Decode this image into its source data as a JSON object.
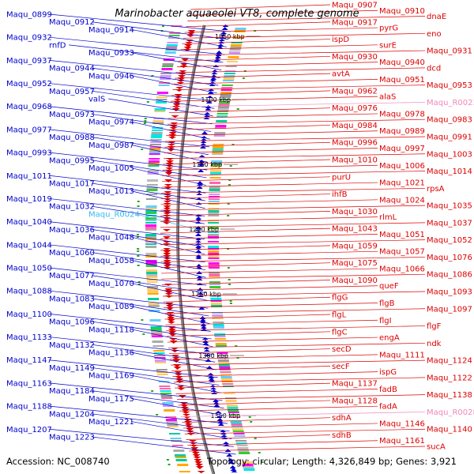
{
  "title": "Marinobacter aquaeolei VT8, complete genome",
  "footer": {
    "accession": "Accession: NC_008740",
    "summary": "Topology: circular; Length: 4,326,849 bp; Genes: 3,921"
  },
  "colors": {
    "minus_strand": "#0000cc",
    "plus_strand": "#dd0000",
    "rna_minus": "#33bbee",
    "rna_plus": "#ee88bb",
    "backbone": "#888888",
    "tick": "#22aa22"
  },
  "scale_labels": [
    "1050 kbp",
    "1100 kbp",
    "1150 kbp",
    "1200 kbp",
    "1250 kbp",
    "1300 kbp",
    "1350 kbp"
  ],
  "left_labels": [
    "Maqu_0899",
    "Maqu_0912",
    "Maqu_0914",
    "Maqu_0932",
    "rnfD",
    "Maqu_0933",
    "Maqu_0937",
    "Maqu_0944",
    "Maqu_0946",
    "Maqu_0952",
    "Maqu_0957",
    "valS",
    "Maqu_0968",
    "Maqu_0973",
    "Maqu_0974",
    "Maqu_0977",
    "Maqu_0988",
    "Maqu_0987",
    "Maqu_0993",
    "Maqu_0995",
    "Maqu_1005",
    "Maqu_1011",
    "Maqu_1017",
    "Maqu_1013",
    "Maqu_1019",
    "Maqu_1032",
    "Maqu_R0024",
    "Maqu_1040",
    "Maqu_1036",
    "Maqu_1048",
    "Maqu_1044",
    "Maqu_1060",
    "Maqu_1058",
    "Maqu_1050",
    "Maqu_1077",
    "Maqu_1070",
    "Maqu_1088",
    "Maqu_1083",
    "Maqu_1089",
    "Maqu_1100",
    "Maqu_1096",
    "Maqu_1118",
    "Maqu_1133",
    "Maqu_1132",
    "Maqu_1136",
    "Maqu_1147",
    "Maqu_1149",
    "Maqu_1169",
    "Maqu_1163",
    "Maqu_1184",
    "Maqu_1175",
    "Maqu_1188",
    "Maqu_1204",
    "Maqu_1221",
    "Maqu_1207",
    "Maqu_1223"
  ],
  "right_labels": [
    "Maqu_0907",
    "Maqu_0910",
    "dnaE",
    "Maqu_0917",
    "pyrG",
    "eno",
    "ispD",
    "surE",
    "Maqu_0931",
    "Maqu_0930",
    "Maqu_0940",
    "dcd",
    "avtA",
    "Maqu_0951",
    "Maqu_0953",
    "Maqu_0962",
    "alaS",
    "Maqu_R0023",
    "Maqu_0976",
    "Maqu_0978",
    "Maqu_0983",
    "Maqu_0984",
    "Maqu_0989",
    "Maqu_0991",
    "Maqu_0996",
    "Maqu_0997",
    "Maqu_1003",
    "Maqu_1010",
    "Maqu_1006",
    "Maqu_1014",
    "purU",
    "Maqu_1021",
    "rpsA",
    "ihfB",
    "Maqu_1024",
    "Maqu_1035",
    "Maqu_1030",
    "rlmL",
    "Maqu_1037",
    "Maqu_1043",
    "Maqu_1051",
    "Maqu_1052",
    "Maqu_1059",
    "Maqu_1057",
    "Maqu_1076",
    "Maqu_1075",
    "Maqu_1066",
    "Maqu_1086",
    "Maqu_1090",
    "queF",
    "Maqu_1093",
    "flgG",
    "flgB",
    "Maqu_1097",
    "flgL",
    "flgI",
    "flgF",
    "flgC",
    "engA",
    "ndk",
    "secD",
    "Maqu_1111",
    "Maqu_1124",
    "secF",
    "ispG",
    "Maqu_1122",
    "Maqu_1137",
    "fadB",
    "Maqu_1138",
    "Maqu_1128",
    "fadA",
    "Maqu_R0028",
    "sdhA",
    "Maqu_1146",
    "Maqu_1140",
    "sdhB",
    "Maqu_1161",
    "sucA"
  ]
}
